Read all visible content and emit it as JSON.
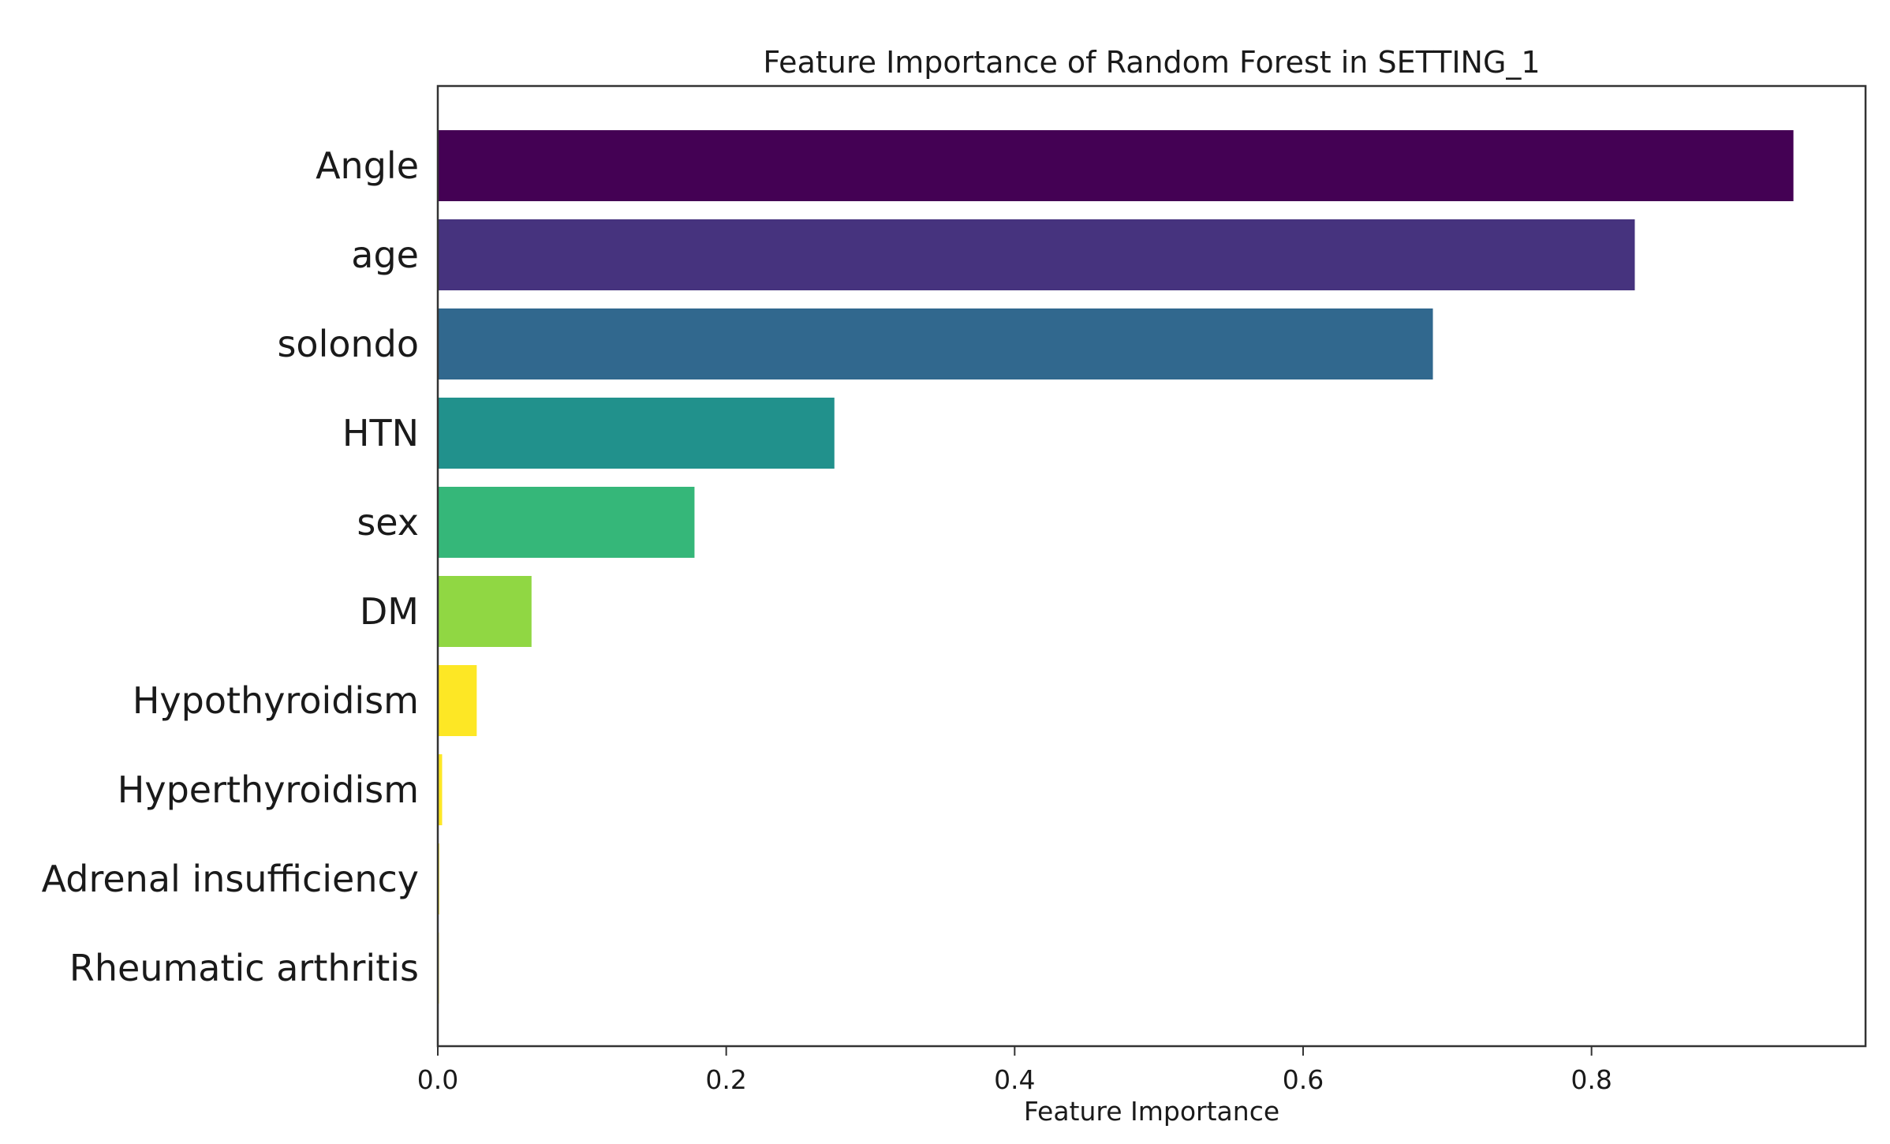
{
  "chart_data": {
    "type": "bar",
    "orientation": "horizontal",
    "title": "Feature Importance of Random Forest in SETTING_1",
    "xlabel": "Feature Importance",
    "ylabel": "",
    "xlim": [
      0,
      0.99
    ],
    "xticks": [
      0.0,
      0.2,
      0.4,
      0.6,
      0.8
    ],
    "xtick_labels": [
      "0.0",
      "0.2",
      "0.4",
      "0.6",
      "0.8"
    ],
    "grid": false,
    "categories": [
      "Angle",
      "age",
      "solondo",
      "HTN",
      "sex",
      "DM",
      "Hypothyroidism",
      "Hyperthyroidism",
      "Adrenal insufficiency",
      "Rheumatic arthritis"
    ],
    "values": [
      0.94,
      0.83,
      0.69,
      0.275,
      0.178,
      0.065,
      0.027,
      0.003,
      0.001,
      0.0005
    ],
    "colors": [
      "#440154",
      "#46337e",
      "#31688e",
      "#21918c",
      "#35b779",
      "#90d743",
      "#fde725",
      "#fde725",
      "#fde725",
      "#fde725"
    ]
  }
}
